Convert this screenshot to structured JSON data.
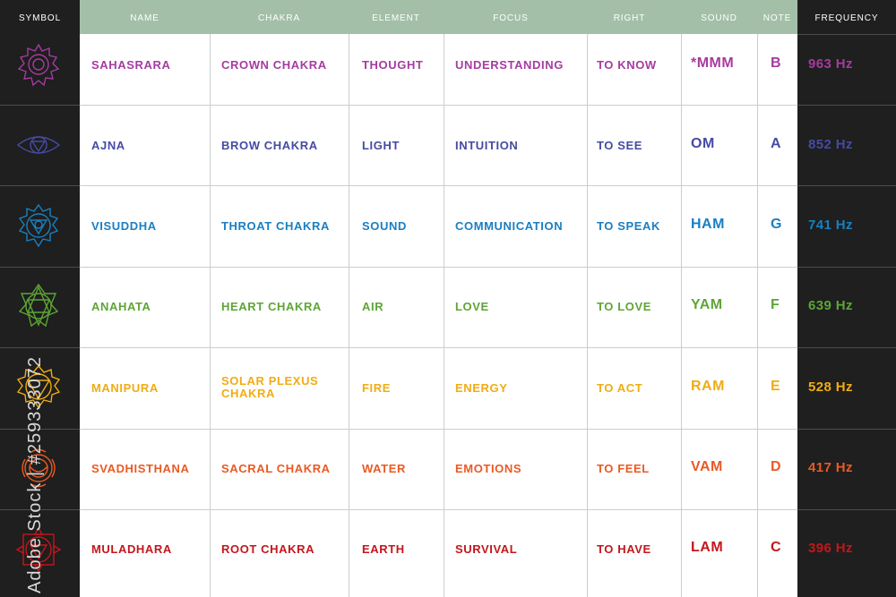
{
  "headers": {
    "symbol": "SYMBOL",
    "name": "NAME",
    "chakra": "CHAKRA",
    "element": "ELEMENT",
    "focus": "FOCUS",
    "right": "RIGHT",
    "sound": "SOUND",
    "note": "NOTE",
    "frequency": "FREQUENCY"
  },
  "rows": [
    {
      "name": "SAHASRARA",
      "chakra": "CROWN CHAKRA",
      "element": "THOUGHT",
      "focus": "UNDERSTANDING",
      "right": "TO KNOW",
      "sound": "*MMM",
      "note": "B",
      "frequency": "963 Hz",
      "color": "#a63ba0",
      "icon": "crown-chakra-icon"
    },
    {
      "name": "AJNA",
      "chakra": "BROW CHAKRA",
      "element": "LIGHT",
      "focus": "INTUITION",
      "right": "TO SEE",
      "sound": "OM",
      "note": "A",
      "frequency": "852 Hz",
      "color": "#464aa2",
      "icon": "brow-chakra-icon"
    },
    {
      "name": "VISUDDHA",
      "chakra": "THROAT CHAKRA",
      "element": "SOUND",
      "focus": "COMMUNICATION",
      "right": "TO SPEAK",
      "sound": "HAM",
      "note": "G",
      "frequency": "741 Hz",
      "color": "#1a7fc2",
      "icon": "throat-chakra-icon"
    },
    {
      "name": "ANAHATA",
      "chakra": "HEART CHAKRA",
      "element": "AIR",
      "focus": "LOVE",
      "right": "TO LOVE",
      "sound": "YAM",
      "note": "F",
      "frequency": "639 Hz",
      "color": "#5ea536",
      "icon": "heart-chakra-icon"
    },
    {
      "name": "MANIPURA",
      "chakra": "SOLAR PLEXUS CHAKRA",
      "element": "FIRE",
      "focus": "ENERGY",
      "right": "TO ACT",
      "sound": "RAM",
      "note": "E",
      "frequency": "528 Hz",
      "color": "#f0ac14",
      "icon": "solar-plexus-chakra-icon"
    },
    {
      "name": "SVADHISTHANA",
      "chakra": "SACRAL CHAKRA",
      "element": "WATER",
      "focus": "EMOTIONS",
      "right": "TO FEEL",
      "sound": "VAM",
      "note": "D",
      "frequency": "417 Hz",
      "color": "#e95a24",
      "icon": "sacral-chakra-icon"
    },
    {
      "name": "MULADHARA",
      "chakra": "ROOT CHAKRA",
      "element": "EARTH",
      "focus": "SURVIVAL",
      "right": "TO HAVE",
      "sound": "LAM",
      "note": "C",
      "frequency": "396 Hz",
      "color": "#c4161c",
      "icon": "root-chakra-icon"
    }
  ],
  "watermark": "Adobe Stock | #259333072"
}
